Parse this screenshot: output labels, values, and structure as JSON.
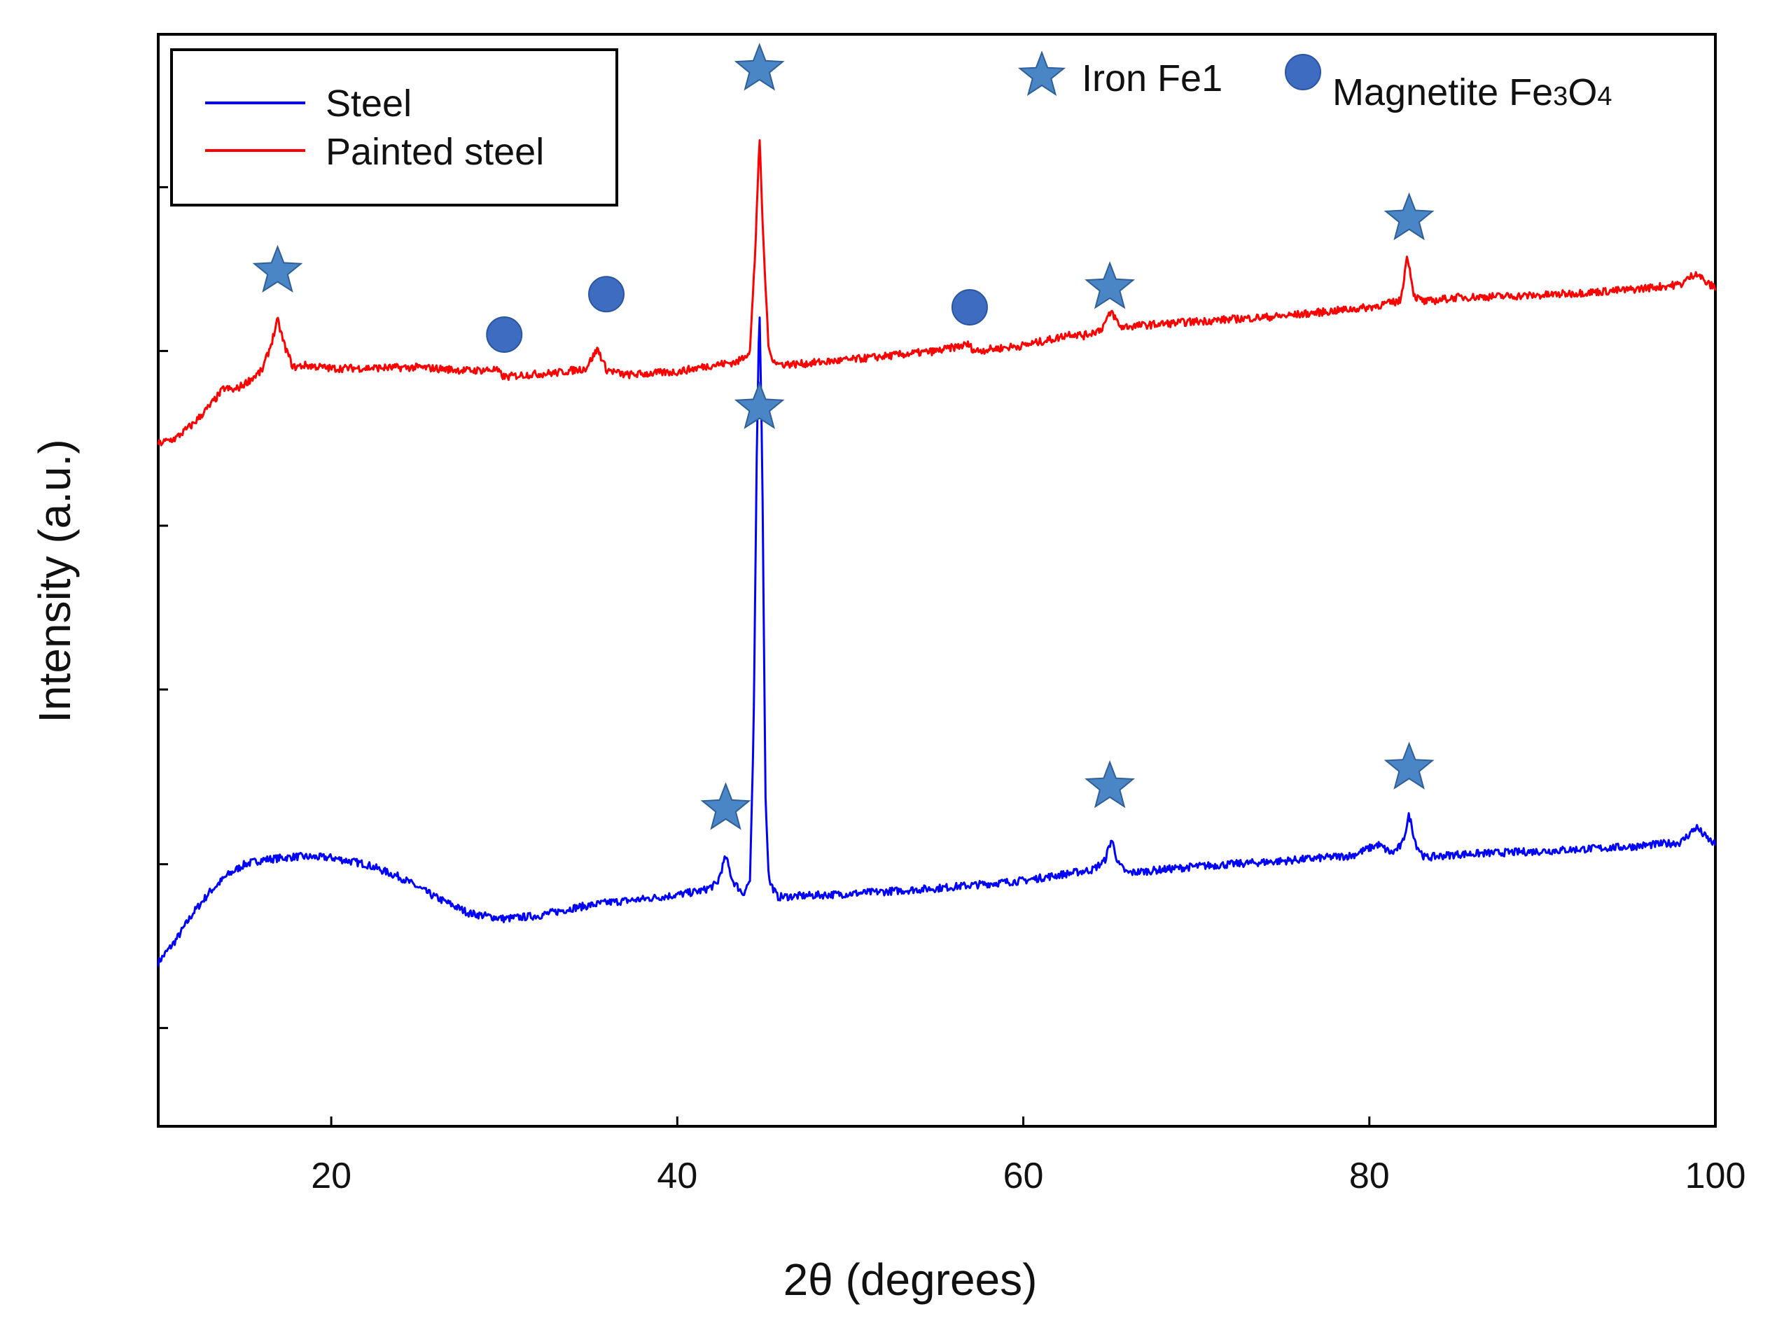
{
  "chart_data": {
    "type": "line",
    "title": "",
    "xlabel": "2θ (degrees)",
    "ylabel": "Intensity (a.u.)",
    "xlim": [
      10,
      100
    ],
    "ylim": [
      0,
      100
    ],
    "xticks": [
      20,
      40,
      60,
      80,
      100
    ],
    "yticks_unlabeled": [
      9,
      24,
      40,
      55,
      71,
      86
    ],
    "grid": false,
    "legend": {
      "placement": "top-left",
      "entries": [
        {
          "label": "Steel",
          "color": "#0000ff"
        },
        {
          "label": "Painted steel",
          "color": "#ff0000"
        }
      ]
    },
    "marker_legend": {
      "placement": "top-right",
      "entries": [
        {
          "label": "Iron Fe1",
          "symbol": "star",
          "color": "#4a86c5"
        },
        {
          "label": "Magnetite Fe",
          "sub1": "3",
          "mid": "O",
          "sub2": "4",
          "symbol": "circle",
          "color": "#3d6cc0"
        }
      ]
    },
    "series": [
      {
        "name": "Steel",
        "color": "#0000ff",
        "points": [
          [
            10,
            15
          ],
          [
            11,
            17
          ],
          [
            12,
            19.5
          ],
          [
            13,
            21.5
          ],
          [
            14,
            23
          ],
          [
            15,
            24
          ],
          [
            16,
            24.4
          ],
          [
            18,
            24.7
          ],
          [
            20,
            24.6
          ],
          [
            22,
            24
          ],
          [
            24,
            22.8
          ],
          [
            26,
            21
          ],
          [
            28,
            19.5
          ],
          [
            30,
            19
          ],
          [
            32,
            19.3
          ],
          [
            34,
            20
          ],
          [
            36,
            20.5
          ],
          [
            38,
            20.8
          ],
          [
            40,
            21.2
          ],
          [
            41.5,
            21.6
          ],
          [
            42.3,
            22.2
          ],
          [
            42.8,
            24.7
          ],
          [
            43.2,
            22.5
          ],
          [
            43.8,
            21.3
          ],
          [
            44.2,
            22.5
          ],
          [
            44.4,
            35
          ],
          [
            44.6,
            62
          ],
          [
            44.75,
            75.5
          ],
          [
            44.9,
            62
          ],
          [
            45.1,
            30
          ],
          [
            45.3,
            22.5
          ],
          [
            45.8,
            21
          ],
          [
            50,
            21.3
          ],
          [
            55,
            21.8
          ],
          [
            60,
            22.5
          ],
          [
            62,
            23
          ],
          [
            64,
            23.5
          ],
          [
            64.7,
            24.3
          ],
          [
            65.1,
            26.3
          ],
          [
            65.5,
            24
          ],
          [
            66,
            23.2
          ],
          [
            70,
            23.8
          ],
          [
            75,
            24.3
          ],
          [
            79,
            24.8
          ],
          [
            80.5,
            25.8
          ],
          [
            81.3,
            25
          ],
          [
            81.9,
            25.8
          ],
          [
            82.3,
            28.5
          ],
          [
            82.7,
            25.8
          ],
          [
            83.2,
            24.6
          ],
          [
            85,
            24.9
          ],
          [
            90,
            25.2
          ],
          [
            95,
            25.6
          ],
          [
            98,
            26
          ],
          [
            98.9,
            27.4
          ],
          [
            99.5,
            26.4
          ],
          [
            100,
            25.8
          ]
        ]
      },
      {
        "name": "Painted steel",
        "color": "#ff0000",
        "points": [
          [
            10,
            62.5
          ],
          [
            11,
            63
          ],
          [
            12,
            64.3
          ],
          [
            13,
            66
          ],
          [
            13.8,
            67.6
          ],
          [
            14.4,
            67.4
          ],
          [
            15,
            68
          ],
          [
            16,
            69.2
          ],
          [
            16.5,
            71.5
          ],
          [
            16.9,
            73.8
          ],
          [
            17.3,
            71.5
          ],
          [
            17.8,
            69.5
          ],
          [
            18.5,
            69.7
          ],
          [
            20,
            69.4
          ],
          [
            25,
            69.5
          ],
          [
            28,
            69.2
          ],
          [
            29.5,
            69.3
          ],
          [
            30,
            68.6
          ],
          [
            31,
            68.8
          ],
          [
            33,
            69
          ],
          [
            34.7,
            69.4
          ],
          [
            35.4,
            71.2
          ],
          [
            35.9,
            69.3
          ],
          [
            37,
            68.8
          ],
          [
            40,
            69.1
          ],
          [
            42,
            69.7
          ],
          [
            43.5,
            70
          ],
          [
            44.2,
            71
          ],
          [
            44.5,
            80
          ],
          [
            44.75,
            90.5
          ],
          [
            45,
            80
          ],
          [
            45.3,
            70.8
          ],
          [
            45.8,
            69.8
          ],
          [
            47,
            69.8
          ],
          [
            50,
            70.2
          ],
          [
            55,
            71
          ],
          [
            56.8,
            71.6
          ],
          [
            57.2,
            71
          ],
          [
            60,
            71.5
          ],
          [
            62,
            72.2
          ],
          [
            62.7,
            72.6
          ],
          [
            63.5,
            72.4
          ],
          [
            64.5,
            73
          ],
          [
            65.1,
            74.6
          ],
          [
            65.6,
            73.2
          ],
          [
            70,
            73.7
          ],
          [
            75,
            74.2
          ],
          [
            80,
            75
          ],
          [
            81.8,
            75.6
          ],
          [
            82.2,
            79.8
          ],
          [
            82.6,
            76
          ],
          [
            83.2,
            75.5
          ],
          [
            85,
            75.9
          ],
          [
            90,
            76.1
          ],
          [
            95,
            76.6
          ],
          [
            98,
            77.1
          ],
          [
            98.9,
            78.2
          ],
          [
            99.5,
            77.2
          ],
          [
            100,
            76.8
          ]
        ]
      }
    ],
    "annotations": [
      {
        "label": "Iron Fe1",
        "symbol": "star",
        "x": 16.9,
        "y": 78.3
      },
      {
        "label": "Magnetite Fe3O4",
        "symbol": "circle",
        "x": 30,
        "y": 72.5
      },
      {
        "label": "Magnetite Fe3O4",
        "symbol": "circle",
        "x": 35.9,
        "y": 76.2
      },
      {
        "label": "Iron Fe1",
        "symbol": "star",
        "x": 44.75,
        "y": 96.8
      },
      {
        "label": "Magnetite Fe3O4",
        "symbol": "circle",
        "x": 56.9,
        "y": 75
      },
      {
        "label": "Iron Fe1",
        "symbol": "star",
        "x": 65,
        "y": 76.8
      },
      {
        "label": "Iron Fe1",
        "symbol": "star",
        "x": 82.3,
        "y": 83.1
      },
      {
        "label": "Iron Fe1",
        "symbol": "star",
        "x": 44.75,
        "y": 65.8
      },
      {
        "label": "Iron Fe1",
        "symbol": "star",
        "x": 42.8,
        "y": 29.1
      },
      {
        "label": "Iron Fe1",
        "symbol": "star",
        "x": 65,
        "y": 31.1
      },
      {
        "label": "Iron Fe1",
        "symbol": "star",
        "x": 82.3,
        "y": 32.8
      }
    ]
  }
}
